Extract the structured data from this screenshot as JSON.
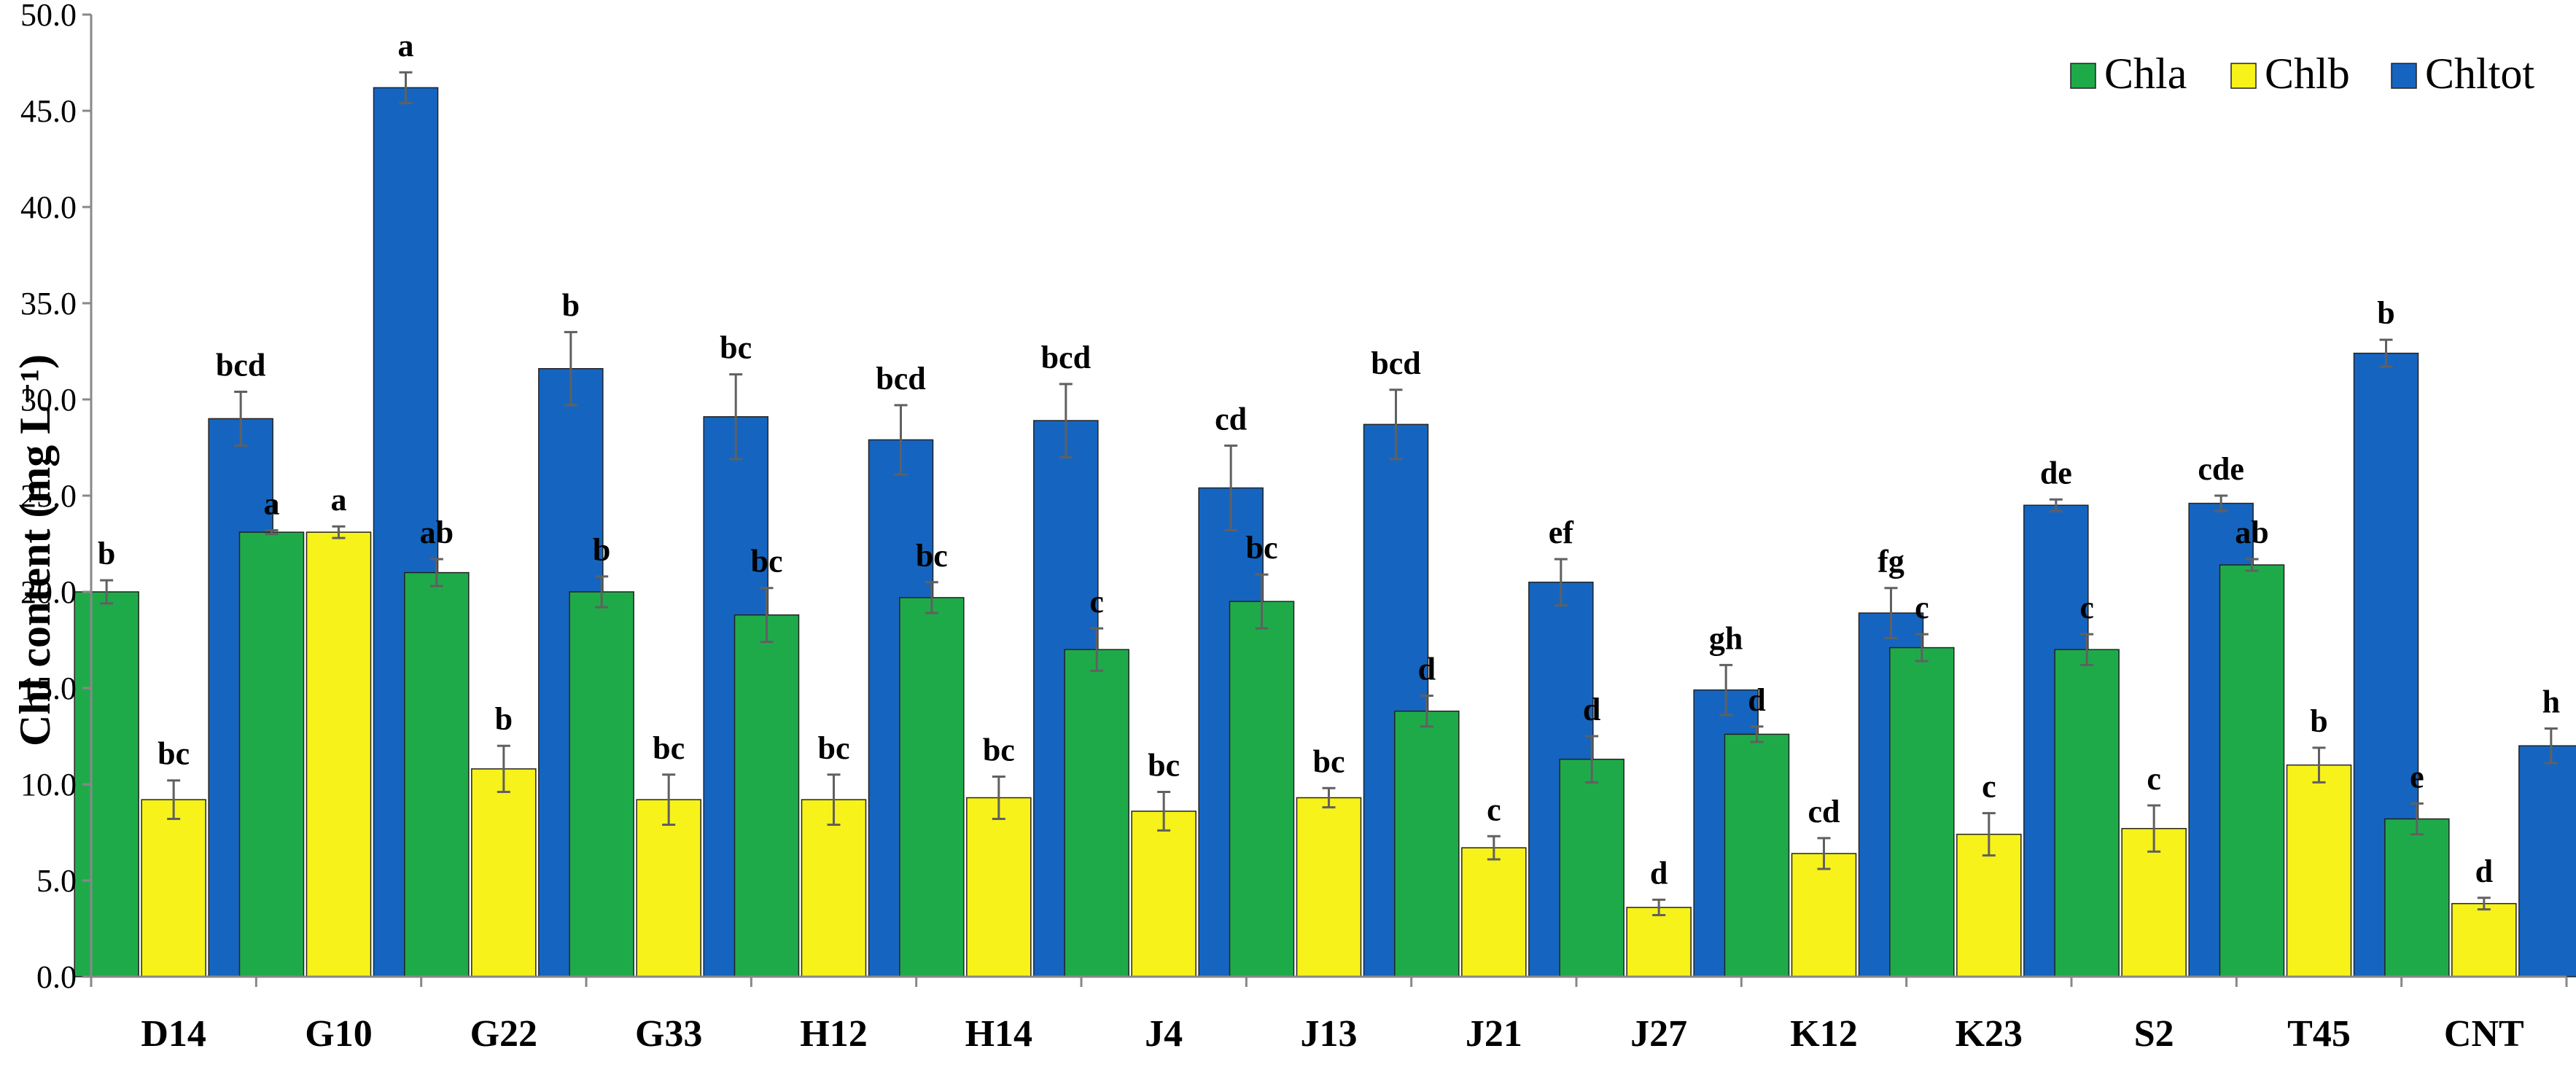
{
  "chart_data": {
    "type": "bar",
    "title": "",
    "xlabel": "",
    "ylabel": "Chl content (mg L⁻¹)",
    "ylim": [
      0,
      50
    ],
    "ytick_step": 5,
    "ytick_labels": [
      "0.0",
      "5.0",
      "10.0",
      "15.0",
      "20.0",
      "25.0",
      "30.0",
      "35.0",
      "40.0",
      "45.0",
      "50.0"
    ],
    "categories": [
      "D14",
      "G10",
      "G22",
      "G33",
      "H12",
      "H14",
      "J4",
      "J13",
      "J21",
      "J27",
      "K12",
      "K23",
      "S2",
      "T45",
      "CNT"
    ],
    "legend_position": "top-right",
    "series": [
      {
        "name": "Chla",
        "color": "#1faa4a",
        "values": [
          20.0,
          23.1,
          21.0,
          20.0,
          18.8,
          19.7,
          17.0,
          19.5,
          13.8,
          11.3,
          12.6,
          17.1,
          17.0,
          21.4,
          8.2
        ],
        "errors": [
          0.6,
          0.1,
          0.7,
          0.8,
          1.4,
          0.8,
          1.1,
          1.4,
          0.8,
          1.2,
          0.4,
          0.7,
          0.8,
          0.3,
          0.8
        ],
        "labels": [
          "b",
          "a",
          "ab",
          "b",
          "bc",
          "bc",
          "c",
          "bc",
          "d",
          "d",
          "d",
          "c",
          "c",
          "ab",
          "e"
        ]
      },
      {
        "name": "Chlb",
        "color": "#f7f21a",
        "values": [
          9.2,
          23.1,
          10.8,
          9.2,
          9.2,
          9.3,
          8.6,
          9.3,
          6.7,
          3.6,
          6.4,
          7.4,
          7.7,
          11.0,
          3.8
        ],
        "errors": [
          1.0,
          0.3,
          1.2,
          1.3,
          1.3,
          1.1,
          1.0,
          0.5,
          0.6,
          0.4,
          0.8,
          1.1,
          1.2,
          0.9,
          0.3
        ],
        "labels": [
          "bc",
          "a",
          "b",
          "bc",
          "bc",
          "bc",
          "bc",
          "bc",
          "c",
          "d",
          "cd",
          "c",
          "c",
          "b",
          "d"
        ]
      },
      {
        "name": "Chltot",
        "color": "#1565c0",
        "values": [
          29.0,
          46.2,
          31.6,
          29.1,
          27.9,
          28.9,
          25.4,
          28.7,
          20.5,
          14.9,
          18.9,
          24.5,
          24.6,
          32.4,
          12.0
        ],
        "errors": [
          1.4,
          0.8,
          1.9,
          2.2,
          1.8,
          1.9,
          2.2,
          1.8,
          1.2,
          1.3,
          1.3,
          0.3,
          0.4,
          0.7,
          0.9
        ],
        "labels": [
          "bcd",
          "a",
          "b",
          "bc",
          "bcd",
          "bcd",
          "cd",
          "bcd",
          "ef",
          "gh",
          "fg",
          "de",
          "cde",
          "b",
          "h"
        ]
      }
    ]
  }
}
